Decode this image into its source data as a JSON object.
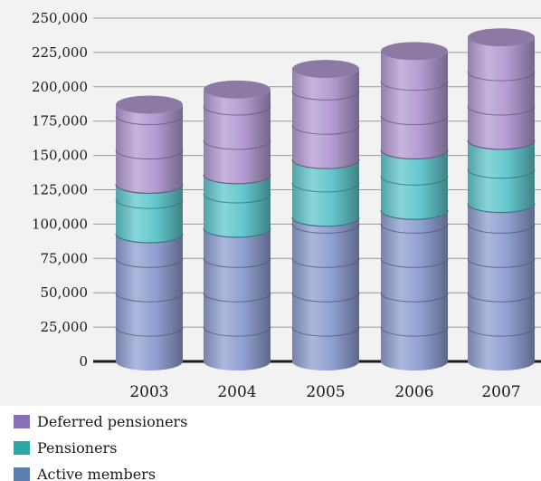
{
  "chart_data": {
    "type": "bar",
    "stacked": true,
    "style": "3d-cylinder",
    "categories": [
      "2003",
      "2004",
      "2005",
      "2006",
      "2007"
    ],
    "series": [
      {
        "name": "Active members",
        "values": [
          93000,
          97000,
          105000,
          110000,
          115000
        ],
        "color": "#8f9fd0"
      },
      {
        "name": "Pensioners",
        "values": [
          36000,
          39000,
          42000,
          44000,
          46000
        ],
        "color": "#62c7cc"
      },
      {
        "name": "Deferred pensioners",
        "values": [
          58000,
          62000,
          66000,
          72000,
          75000
        ],
        "color": "#b39bd2"
      }
    ],
    "yticks": [
      "250,000",
      "225,000",
      "200,000",
      "175,000",
      "150,000",
      "125,000",
      "100,000",
      "75,000",
      "50,000",
      "25,000",
      "0"
    ],
    "ylim": [
      0,
      250000
    ],
    "ystep": 25000,
    "grid": true,
    "legend_position": "bottom-left",
    "legend_order": [
      "Deferred pensioners",
      "Pensioners",
      "Active members"
    ],
    "legend_colors": {
      "Deferred pensioners": "#8a6fb8",
      "Pensioners": "#2aa8a8",
      "Active members": "#5b7fb1"
    },
    "background": "#f2f2f2"
  }
}
